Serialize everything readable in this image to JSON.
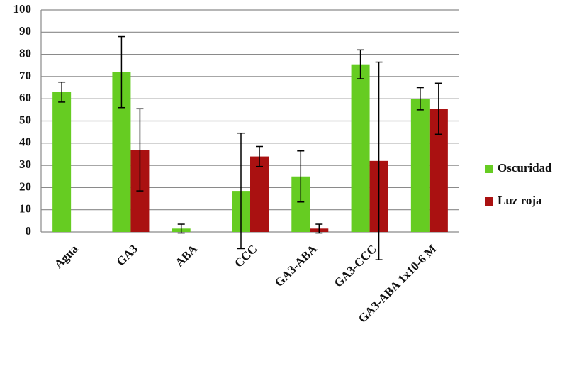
{
  "chart_data": {
    "type": "bar",
    "categories": [
      "Agua",
      "GA3",
      "ABA",
      "CCC",
      "GA3-ABA",
      "GA3-CCC",
      "GA3-ABA 1x10-6 M"
    ],
    "series": [
      {
        "name": "Oscuridad",
        "color": "#66cc22",
        "values": [
          63,
          72,
          1.5,
          18.5,
          25,
          75.5,
          60
        ],
        "errors": [
          4.5,
          16,
          2,
          26,
          11.5,
          6.5,
          5
        ]
      },
      {
        "name": "Luz roja",
        "color": "#aa1111",
        "values": [
          null,
          37,
          null,
          34,
          1.5,
          32,
          55.5
        ],
        "errors": [
          null,
          18.5,
          null,
          4.5,
          2,
          44.5,
          11.5
        ]
      }
    ],
    "ylim": [
      0,
      100
    ],
    "yticks": [
      0,
      10,
      20,
      30,
      40,
      50,
      60,
      70,
      80,
      90,
      100
    ],
    "grid": true,
    "legend": "right"
  }
}
